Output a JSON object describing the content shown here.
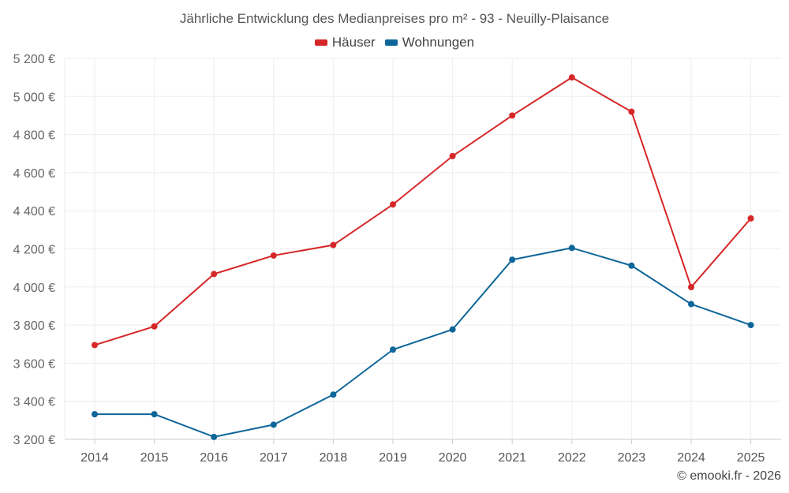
{
  "chart_data": {
    "type": "line",
    "title": "Jährliche Entwicklung des Medianpreises pro m² - 93 - Neuilly-Plaisance",
    "categories": [
      "2014",
      "2015",
      "2016",
      "2017",
      "2018",
      "2019",
      "2020",
      "2021",
      "2022",
      "2023",
      "2024",
      "2025"
    ],
    "series": [
      {
        "name": "Häuser",
        "color": "#d62728",
        "values": [
          3695,
          3793,
          4068,
          4165,
          4220,
          4433,
          4687,
          4900,
          5100,
          4920,
          3999,
          4360
        ]
      },
      {
        "name": "Wohnungen",
        "color": "#0e6699",
        "values": [
          3332,
          3332,
          3213,
          3277,
          3435,
          3671,
          3777,
          4143,
          4205,
          4112,
          3910,
          3800
        ]
      }
    ],
    "ylim": [
      3200,
      5200
    ],
    "yticks": [
      3200,
      3400,
      3600,
      3800,
      4000,
      4200,
      4400,
      4600,
      4800,
      5000,
      5200
    ],
    "ytick_labels": [
      "3 200 €",
      "3 400 €",
      "3 600 €",
      "3 800 €",
      "4 000 €",
      "4 200 €",
      "4 400 €",
      "4 600 €",
      "4 800 €",
      "5 000 €",
      "5 200 €"
    ],
    "xlabel": "",
    "ylabel": "",
    "grid": true,
    "legend_position": "top-center"
  },
  "credit": "© emooki.fr - 2026"
}
